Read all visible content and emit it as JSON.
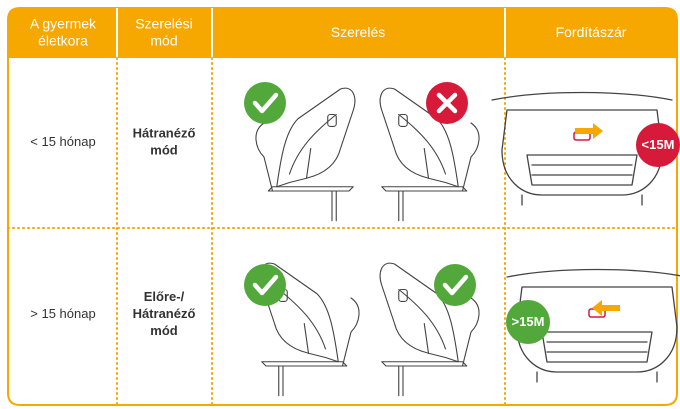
{
  "header": {
    "cells": [
      "A gyermek\néletkora",
      "Szerelési\nmód",
      "Szerelés",
      "Fordítászár"
    ]
  },
  "rows": [
    {
      "age": "< 15 hónap",
      "mode": "Hátranéző\nmód",
      "badge": "<15M"
    },
    {
      "age": "> 15 hónap",
      "mode": "Előre-/\nHátranéző\nmód",
      "badge": ">15M"
    }
  ]
}
